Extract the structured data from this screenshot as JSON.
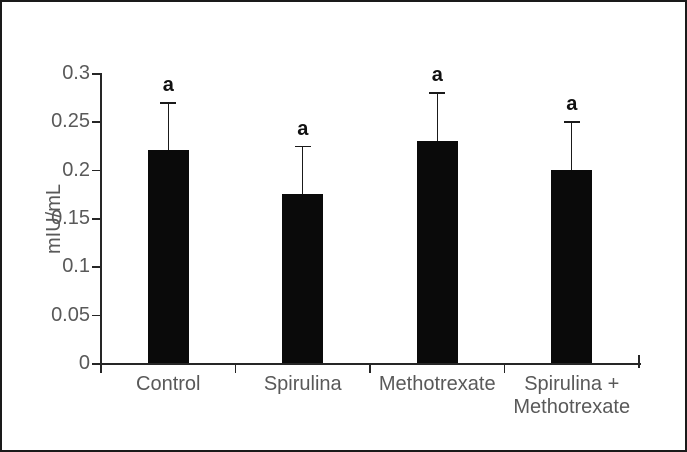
{
  "chart_data": {
    "type": "bar",
    "title": "",
    "xlabel": "",
    "ylabel": "mIU/mL",
    "categories": [
      "Control",
      "Spirulina",
      "Methotrexate",
      "Spirulina + Methotrexate"
    ],
    "values": [
      0.22,
      0.175,
      0.23,
      0.2
    ],
    "errors_upper": [
      0.05,
      0.05,
      0.05,
      0.05
    ],
    "error_tops": [
      0.27,
      0.225,
      0.28,
      0.25
    ],
    "point_labels": [
      "a",
      "a",
      "a",
      "a"
    ],
    "ylim": [
      0,
      0.3
    ],
    "yticks": [
      0,
      0.05,
      0.1,
      0.15,
      0.2,
      0.25,
      0.3
    ],
    "ytick_labels": [
      "0",
      "0.05",
      "0.1",
      "0.15",
      "0.2",
      "0.25",
      "0.3"
    ],
    "grid": false,
    "legend_position": "none"
  },
  "colors": {
    "bar": "#0a0a0a",
    "axis": "#262626",
    "tick_text": "#595959",
    "significance_text": "#111111",
    "frame_border": "#1a1a1a",
    "background": "#ffffff"
  }
}
